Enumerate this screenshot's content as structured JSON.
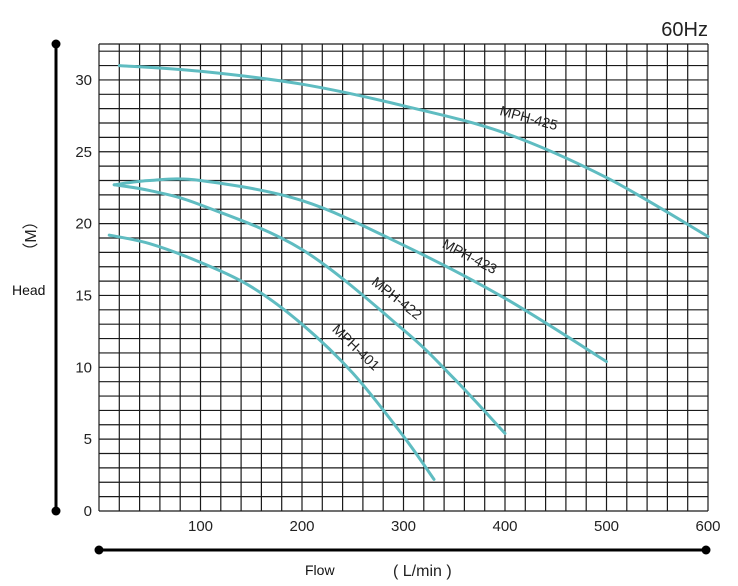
{
  "chart_data": {
    "type": "line",
    "frequency_label": "60Hz",
    "ylabel": "Head",
    "ylabel_unit": "（M）",
    "xlabel": "Flow",
    "xlabel_unit": "( L/min )",
    "xlim": [
      0,
      600
    ],
    "ylim": [
      0,
      32.5
    ],
    "xticks": [
      100,
      200,
      300,
      400,
      500,
      600
    ],
    "yticks": [
      0,
      5,
      10,
      15,
      20,
      25,
      30
    ],
    "grid": true,
    "curve_color": "#5fbcc1",
    "series": [
      {
        "name": "MPH-425",
        "x": [
          20,
          100,
          200,
          300,
          400,
          500,
          600
        ],
        "y": [
          31,
          30.6,
          29.7,
          28.2,
          26.3,
          23.2,
          19.1
        ]
      },
      {
        "name": "MPH-423",
        "x": [
          15,
          50,
          100,
          200,
          300,
          400,
          500
        ],
        "y": [
          22.7,
          23.0,
          23.0,
          21.6,
          18.5,
          14.8,
          10.4
        ]
      },
      {
        "name": "MPH-422",
        "x": [
          15,
          50,
          100,
          200,
          300,
          350,
          400
        ],
        "y": [
          22.7,
          22.3,
          21.3,
          18.2,
          12.6,
          9.2,
          5.4
        ]
      },
      {
        "name": "MPH-401",
        "x": [
          10,
          50,
          100,
          150,
          200,
          250,
          300,
          330
        ],
        "y": [
          19.2,
          18.6,
          17.3,
          15.6,
          13.0,
          9.6,
          5.2,
          2.2
        ]
      }
    ]
  }
}
